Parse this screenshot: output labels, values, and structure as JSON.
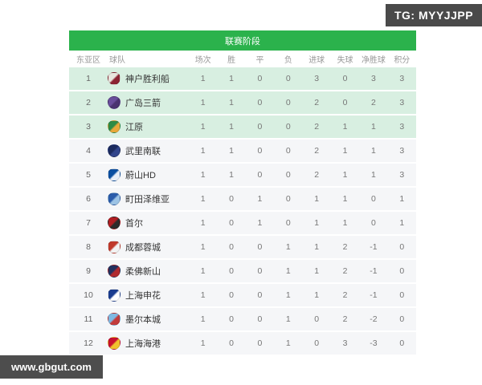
{
  "badge": {
    "label": "TG: MYYJJPP"
  },
  "watermark": {
    "label": "www.gbgut.com"
  },
  "colors": {
    "stage_bar": "#2bb24c",
    "highlight_row": "#d8efe1",
    "normal_row": "#f5f6f8",
    "badge_bg": "#4a4a4a",
    "watermark_bg": "#4d4d4d",
    "header_text": "#999999",
    "stat_text": "#777777",
    "team_text": "#333333"
  },
  "table": {
    "title": "联赛阶段",
    "columns": [
      "东亚区",
      "球队",
      "场次",
      "胜",
      "平",
      "负",
      "进球",
      "失球",
      "净胜球",
      "积分"
    ],
    "rows": [
      {
        "rank": "1",
        "team": "神户胜利船",
        "logo_colors": [
          "#e9e5de",
          "#8c2333"
        ],
        "played": "1",
        "win": "1",
        "draw": "0",
        "loss": "0",
        "gf": "3",
        "ga": "0",
        "gd": "3",
        "pts": "3",
        "highlight": true
      },
      {
        "rank": "2",
        "team": "广岛三箭",
        "logo_colors": [
          "#6a4e9c",
          "#4a3370"
        ],
        "played": "1",
        "win": "1",
        "draw": "0",
        "loss": "0",
        "gf": "2",
        "ga": "0",
        "gd": "2",
        "pts": "3",
        "highlight": true
      },
      {
        "rank": "3",
        "team": "江原",
        "logo_colors": [
          "#2e8b45",
          "#e8a83a"
        ],
        "played": "1",
        "win": "1",
        "draw": "0",
        "loss": "0",
        "gf": "2",
        "ga": "1",
        "gd": "1",
        "pts": "3",
        "highlight": true
      },
      {
        "rank": "4",
        "team": "武里南联",
        "logo_colors": [
          "#1b2a5e",
          "#31458c"
        ],
        "played": "1",
        "win": "1",
        "draw": "0",
        "loss": "0",
        "gf": "2",
        "ga": "1",
        "gd": "1",
        "pts": "3",
        "highlight": false
      },
      {
        "rank": "5",
        "team": "蔚山HD",
        "logo_colors": [
          "#0a4ea0",
          "#e8eef7"
        ],
        "played": "1",
        "win": "1",
        "draw": "0",
        "loss": "0",
        "gf": "2",
        "ga": "1",
        "gd": "1",
        "pts": "3",
        "highlight": false
      },
      {
        "rank": "6",
        "team": "町田泽维亚",
        "logo_colors": [
          "#2a5caa",
          "#9cc3e5"
        ],
        "played": "1",
        "win": "0",
        "draw": "1",
        "loss": "0",
        "gf": "1",
        "ga": "1",
        "gd": "0",
        "pts": "1",
        "highlight": false
      },
      {
        "rank": "7",
        "team": "首尔",
        "logo_colors": [
          "#b01e23",
          "#2b2b2b"
        ],
        "played": "1",
        "win": "0",
        "draw": "1",
        "loss": "0",
        "gf": "1",
        "ga": "1",
        "gd": "0",
        "pts": "1",
        "highlight": false
      },
      {
        "rank": "8",
        "team": "成都蓉城",
        "logo_colors": [
          "#c0392b",
          "#f3f3f3"
        ],
        "played": "1",
        "win": "0",
        "draw": "0",
        "loss": "1",
        "gf": "1",
        "ga": "2",
        "gd": "-1",
        "pts": "0",
        "highlight": false
      },
      {
        "rank": "9",
        "team": "柔佛新山",
        "logo_colors": [
          "#23305e",
          "#b02a2f"
        ],
        "played": "1",
        "win": "0",
        "draw": "0",
        "loss": "1",
        "gf": "1",
        "ga": "2",
        "gd": "-1",
        "pts": "0",
        "highlight": false
      },
      {
        "rank": "10",
        "team": "上海申花",
        "logo_colors": [
          "#1a3c8f",
          "#ffffff"
        ],
        "played": "1",
        "win": "0",
        "draw": "0",
        "loss": "1",
        "gf": "1",
        "ga": "2",
        "gd": "-1",
        "pts": "0",
        "highlight": false
      },
      {
        "rank": "11",
        "team": "墨尔本城",
        "logo_colors": [
          "#7fb9e3",
          "#c33a3a"
        ],
        "played": "1",
        "win": "0",
        "draw": "0",
        "loss": "1",
        "gf": "0",
        "ga": "2",
        "gd": "-2",
        "pts": "0",
        "highlight": false
      },
      {
        "rank": "12",
        "team": "上海海港",
        "logo_colors": [
          "#c8102e",
          "#f0c22e"
        ],
        "played": "1",
        "win": "0",
        "draw": "0",
        "loss": "1",
        "gf": "0",
        "ga": "3",
        "gd": "-3",
        "pts": "0",
        "highlight": false
      }
    ]
  }
}
